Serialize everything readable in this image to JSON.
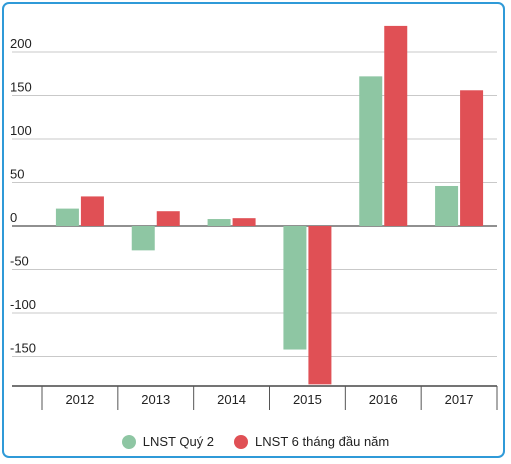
{
  "chart_data": {
    "type": "bar",
    "categories": [
      "2012",
      "2013",
      "2014",
      "2015",
      "2016",
      "2017"
    ],
    "series": [
      {
        "name": "LNST Quý 2",
        "color": "#8ec6a3",
        "values": [
          20,
          -28,
          8,
          -142,
          172,
          46
        ]
      },
      {
        "name": "LNST 6 tháng đầu năm",
        "color": "#e05055",
        "values": [
          34,
          17,
          9,
          -182,
          230,
          156
        ]
      }
    ],
    "y_ticks": [
      200,
      150,
      100,
      50,
      0,
      -50,
      -100,
      -150
    ],
    "ylim": [
      -190,
      235
    ],
    "grid": true,
    "legend_position": "bottom"
  }
}
